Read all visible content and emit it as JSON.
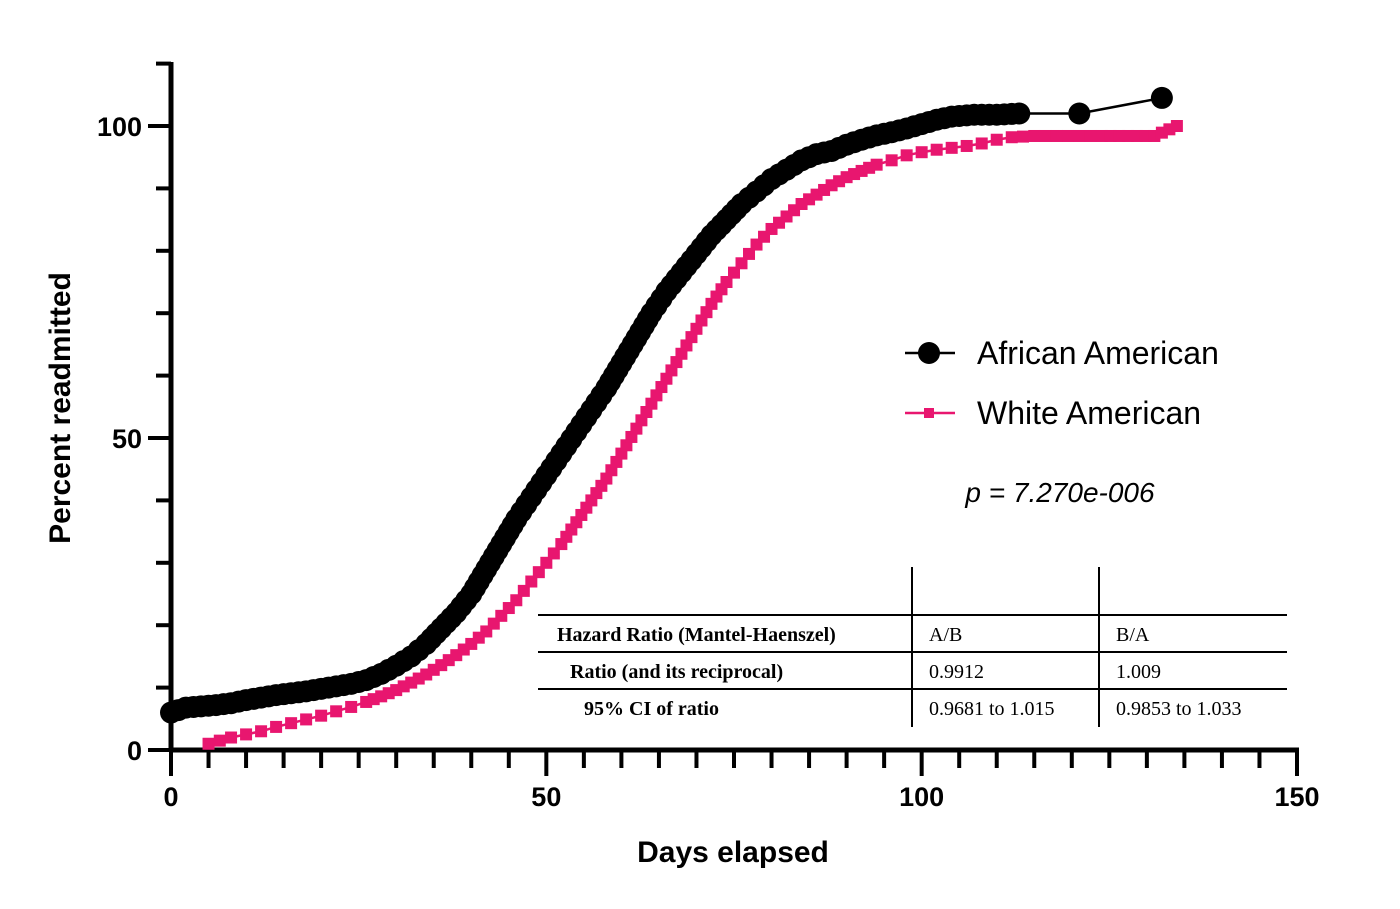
{
  "chart_data": {
    "type": "line",
    "title": "",
    "xlabel": "Days elapsed",
    "ylabel": "Percent readmitted",
    "xlim": [
      0,
      150
    ],
    "ylim": [
      0,
      110
    ],
    "xticks": [
      0,
      50,
      100,
      150
    ],
    "yticks": [
      0,
      50,
      100
    ],
    "grid": false,
    "legend_position": "right",
    "series": [
      {
        "name": "African American",
        "color": "#000000",
        "marker": "circle",
        "x": [
          0,
          2,
          4,
          6,
          8,
          10,
          12,
          14,
          16,
          18,
          20,
          22,
          24,
          26,
          28,
          30,
          32,
          34,
          36,
          38,
          40,
          42,
          44,
          46,
          48,
          50,
          52,
          54,
          56,
          58,
          60,
          62,
          64,
          66,
          68,
          70,
          72,
          74,
          76,
          78,
          80,
          82,
          84,
          86,
          88,
          90,
          92,
          94,
          96,
          98,
          100,
          102,
          104,
          107,
          109,
          110,
          113,
          121,
          132
        ],
        "y": [
          6,
          6.8,
          7,
          7.2,
          7.5,
          8,
          8.4,
          8.8,
          9.1,
          9.4,
          9.8,
          10.2,
          10.6,
          11.2,
          12.2,
          13.5,
          15,
          17,
          19.5,
          22,
          25,
          29,
          33,
          37,
          40.5,
          44,
          47.5,
          51,
          54.5,
          58,
          62,
          66,
          70,
          73.5,
          76.5,
          79.5,
          82.5,
          85,
          87.5,
          89.5,
          91.5,
          93,
          94.5,
          95.5,
          96,
          97,
          97.8,
          98.5,
          99,
          99.6,
          100.3,
          101,
          101.5,
          101.8,
          101.8,
          101.8,
          102,
          102,
          104.5
        ]
      },
      {
        "name": "White American",
        "color": "#e8166f",
        "marker": "square",
        "x": [
          5,
          8,
          10,
          12,
          14,
          16,
          18,
          20,
          22,
          24,
          26,
          28,
          30,
          32,
          34,
          36,
          38,
          40,
          42,
          44,
          46,
          48,
          50,
          52,
          54,
          56,
          58,
          60,
          62,
          64,
          66,
          68,
          70,
          72,
          74,
          76,
          78,
          80,
          82,
          84,
          86,
          88,
          90,
          92,
          94,
          96,
          98,
          100,
          102,
          104,
          106,
          108,
          110,
          112,
          115,
          118,
          121,
          124,
          131,
          134
        ],
        "y": [
          1,
          2,
          2.5,
          3,
          3.7,
          4.3,
          4.9,
          5.5,
          6.2,
          6.9,
          7.7,
          8.6,
          9.6,
          10.8,
          12.1,
          13.6,
          15.2,
          17,
          19,
          21.5,
          24,
          27,
          30,
          33,
          36.5,
          40,
          43.5,
          47.5,
          51.5,
          55.5,
          59.5,
          63.5,
          67.5,
          71.5,
          75,
          78,
          81,
          83.5,
          85.5,
          87.5,
          89,
          90.5,
          91.8,
          92.8,
          93.8,
          94.5,
          95.3,
          95.8,
          96.2,
          96.5,
          96.8,
          97.2,
          97.8,
          98.2,
          98.4,
          98.4,
          98.4,
          98.4,
          98.4,
          100
        ]
      }
    ],
    "annotations": {
      "p_value": "p = 7.270e-006"
    },
    "table": {
      "header": [
        "Hazard Ratio (Mantel-Haenszel)",
        "A/B",
        "B/A"
      ],
      "rows": [
        [
          "Ratio (and its reciprocal)",
          "0.9912",
          "1.009"
        ],
        [
          "95% CI of ratio",
          "0.9681 to 1.015",
          "0.9853 to 1.033"
        ]
      ]
    }
  }
}
